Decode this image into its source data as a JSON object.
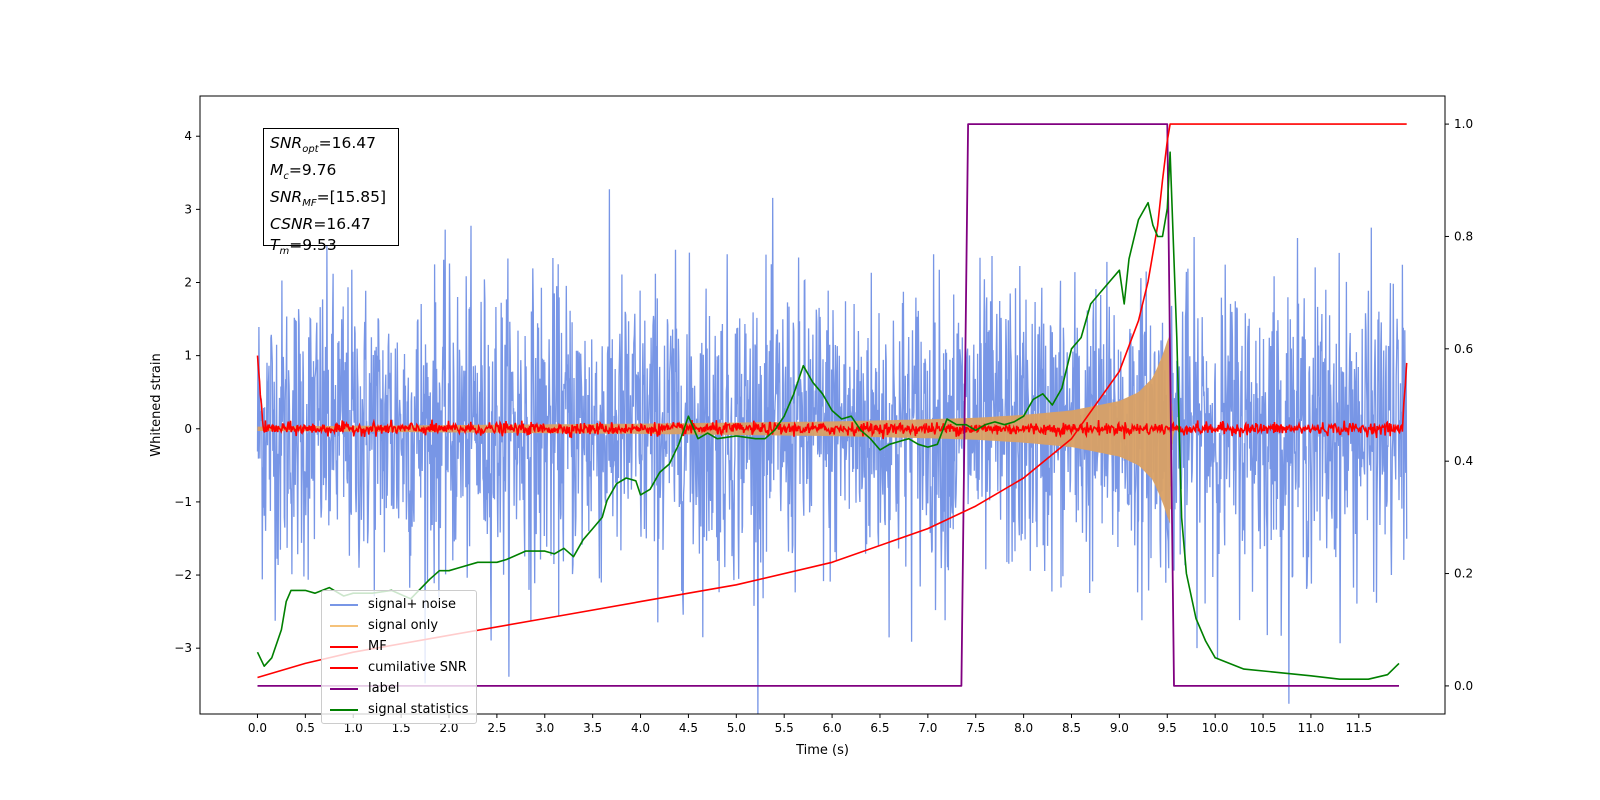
{
  "chart_data": {
    "type": "line",
    "xlabel": "Time (s)",
    "ylabel": "Whitened strain",
    "xlim": [
      -0.6,
      12.4
    ],
    "ylim": [
      -3.9,
      4.55
    ],
    "y2lim": [
      -0.05,
      1.05
    ],
    "x_ticks": [
      "0.0",
      "0.5",
      "1.0",
      "1.5",
      "2.0",
      "2.5",
      "3.0",
      "3.5",
      "4.0",
      "4.5",
      "5.0",
      "5.5",
      "6.0",
      "6.5",
      "7.0",
      "7.5",
      "8.0",
      "8.5",
      "9.0",
      "9.5",
      "10.0",
      "10.5",
      "11.0",
      "11.5"
    ],
    "x_tick_values": [
      0,
      0.5,
      1,
      1.5,
      2,
      2.5,
      3,
      3.5,
      4,
      4.5,
      5,
      5.5,
      6,
      6.5,
      7,
      7.5,
      8,
      8.5,
      9,
      9.5,
      10,
      10.5,
      11,
      11.5
    ],
    "y_ticks": [
      "−3",
      "−2",
      "−1",
      "0",
      "1",
      "2",
      "3",
      "4"
    ],
    "y_tick_values": [
      -3,
      -2,
      -1,
      0,
      1,
      2,
      3,
      4
    ],
    "y2_ticks": [
      "0.0",
      "0.2",
      "0.4",
      "0.6",
      "0.8",
      "1.0"
    ],
    "y2_tick_values": [
      0,
      0.2,
      0.4,
      0.6,
      0.8,
      1.0
    ],
    "annotation": {
      "snr_opt": "16.47",
      "mc": "9.76",
      "snr_mf": "[15.85]",
      "csnr": "16.47",
      "tm": "9.53"
    },
    "series": [
      {
        "name": "signal+ noise",
        "color": "#7896e6",
        "axis": "left",
        "kind": "noise",
        "x_range": [
          0,
          12.0
        ],
        "band_std": 1.0,
        "max_abs": 4.2
      },
      {
        "name": "signal only",
        "color": "#d9a064",
        "axis": "left",
        "kind": "chirp_envelope",
        "envelope_x": [
          0,
          2,
          4,
          6,
          7,
          7.5,
          8,
          8.5,
          9,
          9.2,
          9.35,
          9.45,
          9.5,
          9.53
        ],
        "envelope_y": [
          0.03,
          0.05,
          0.07,
          0.1,
          0.13,
          0.15,
          0.19,
          0.25,
          0.38,
          0.5,
          0.7,
          1.0,
          1.2,
          1.3
        ]
      },
      {
        "name": "MF",
        "color": "#ff0000",
        "axis": "left",
        "kind": "mf",
        "x_range": [
          0,
          12.0
        ],
        "start_value": 1.0,
        "end_value": 0.9,
        "band": 0.07
      },
      {
        "name": "cumilative SNR",
        "color": "#ff0000",
        "axis": "right",
        "x": [
          0,
          0.5,
          1,
          2,
          3,
          4,
          5,
          6,
          7,
          7.5,
          8,
          8.5,
          9,
          9.2,
          9.3,
          9.4,
          9.45,
          9.5,
          9.53,
          12.0
        ],
        "y": [
          0.015,
          0.04,
          0.06,
          0.09,
          0.12,
          0.15,
          0.18,
          0.22,
          0.28,
          0.32,
          0.37,
          0.44,
          0.56,
          0.65,
          0.72,
          0.82,
          0.9,
          0.97,
          1.0,
          1.0
        ]
      },
      {
        "name": "label",
        "color": "#800080",
        "axis": "right",
        "x": [
          0,
          7.35,
          7.42,
          9.5,
          9.57,
          11.92
        ],
        "y": [
          0,
          0,
          1,
          1,
          0,
          0
        ]
      },
      {
        "name": "signal statistics",
        "color": "#008000",
        "axis": "right",
        "x": [
          0,
          0.07,
          0.15,
          0.25,
          0.3,
          0.35,
          0.5,
          0.6,
          0.75,
          0.8,
          0.9,
          1.0,
          1.2,
          1.4,
          1.6,
          1.8,
          1.9,
          2.0,
          2.1,
          2.3,
          2.5,
          2.6,
          2.8,
          3.0,
          3.1,
          3.2,
          3.3,
          3.4,
          3.5,
          3.6,
          3.65,
          3.75,
          3.85,
          3.95,
          4.0,
          4.1,
          4.2,
          4.3,
          4.4,
          4.5,
          4.55,
          4.6,
          4.7,
          4.8,
          5.0,
          5.2,
          5.3,
          5.4,
          5.5,
          5.6,
          5.7,
          5.8,
          5.9,
          6.0,
          6.1,
          6.2,
          6.3,
          6.4,
          6.5,
          6.6,
          6.7,
          6.8,
          6.9,
          7.0,
          7.1,
          7.2,
          7.3,
          7.4,
          7.5,
          7.6,
          7.7,
          7.8,
          7.9,
          8.0,
          8.1,
          8.2,
          8.3,
          8.4,
          8.5,
          8.6,
          8.7,
          8.8,
          8.9,
          9.0,
          9.05,
          9.1,
          9.2,
          9.3,
          9.35,
          9.4,
          9.45,
          9.5,
          9.53,
          9.6,
          9.65,
          9.7,
          9.8,
          9.9,
          10.0,
          10.3,
          10.6,
          11.0,
          11.3,
          11.6,
          11.8,
          11.92
        ],
        "y": [
          0.06,
          0.035,
          0.05,
          0.1,
          0.15,
          0.17,
          0.17,
          0.165,
          0.175,
          0.17,
          0.16,
          0.165,
          0.165,
          0.17,
          0.155,
          0.19,
          0.205,
          0.205,
          0.21,
          0.22,
          0.22,
          0.225,
          0.24,
          0.24,
          0.235,
          0.245,
          0.23,
          0.26,
          0.28,
          0.3,
          0.33,
          0.36,
          0.37,
          0.365,
          0.34,
          0.35,
          0.38,
          0.395,
          0.43,
          0.48,
          0.46,
          0.44,
          0.45,
          0.44,
          0.445,
          0.44,
          0.44,
          0.455,
          0.48,
          0.52,
          0.57,
          0.54,
          0.52,
          0.49,
          0.475,
          0.48,
          0.455,
          0.44,
          0.42,
          0.43,
          0.435,
          0.44,
          0.43,
          0.425,
          0.43,
          0.475,
          0.465,
          0.465,
          0.455,
          0.465,
          0.47,
          0.465,
          0.47,
          0.48,
          0.51,
          0.52,
          0.5,
          0.53,
          0.6,
          0.62,
          0.68,
          0.7,
          0.72,
          0.74,
          0.68,
          0.76,
          0.83,
          0.86,
          0.82,
          0.8,
          0.8,
          0.85,
          0.95,
          0.62,
          0.3,
          0.2,
          0.12,
          0.08,
          0.05,
          0.03,
          0.025,
          0.018,
          0.012,
          0.012,
          0.02,
          0.04
        ]
      }
    ],
    "legend_position": "lower-left",
    "grid": false
  }
}
